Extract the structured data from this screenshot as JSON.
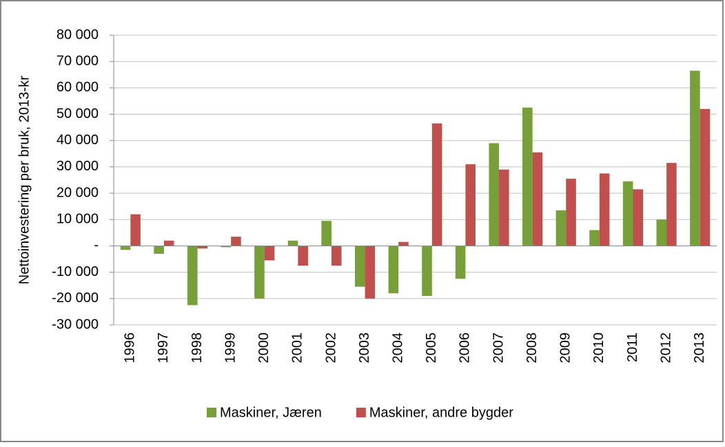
{
  "chart_data": {
    "type": "bar",
    "ylabel": "Nettoinvestering per bruk, 2013-kr",
    "categories": [
      "1996",
      "1997",
      "1998",
      "1999",
      "2000",
      "2001",
      "2002",
      "2003",
      "2004",
      "2005",
      "2006",
      "2007",
      "2008",
      "2009",
      "2010",
      "2011",
      "2012",
      "2013"
    ],
    "series": [
      {
        "name": "Maskiner, Jæren",
        "color": "#77a03a",
        "values": [
          -1500,
          -3000,
          -22500,
          -500,
          -20000,
          2000,
          9500,
          -15500,
          -18000,
          -19000,
          -12500,
          39000,
          52500,
          13500,
          6000,
          24500,
          10000,
          66500
        ]
      },
      {
        "name": "Maskiner, andre bygder",
        "color": "#c0504d",
        "values": [
          12000,
          2000,
          -1000,
          3500,
          -5500,
          -7500,
          -7500,
          -20000,
          1500,
          46500,
          31000,
          29000,
          35500,
          25500,
          27500,
          21500,
          31500,
          52000
        ]
      }
    ],
    "ylim": [
      -30000,
      80000
    ],
    "yticks": [
      {
        "value": -30000,
        "label": "-30 000"
      },
      {
        "value": -20000,
        "label": "-20 000"
      },
      {
        "value": -10000,
        "label": "-10 000"
      },
      {
        "value": 0,
        "label": "-"
      },
      {
        "value": 10000,
        "label": "10 000"
      },
      {
        "value": 20000,
        "label": "20 000"
      },
      {
        "value": 30000,
        "label": "30 000"
      },
      {
        "value": 40000,
        "label": "40 000"
      },
      {
        "value": 50000,
        "label": "50 000"
      },
      {
        "value": 60000,
        "label": "60 000"
      },
      {
        "value": 70000,
        "label": "70 000"
      },
      {
        "value": 80000,
        "label": "80 000"
      }
    ],
    "grid": true,
    "legend": "bottom"
  }
}
